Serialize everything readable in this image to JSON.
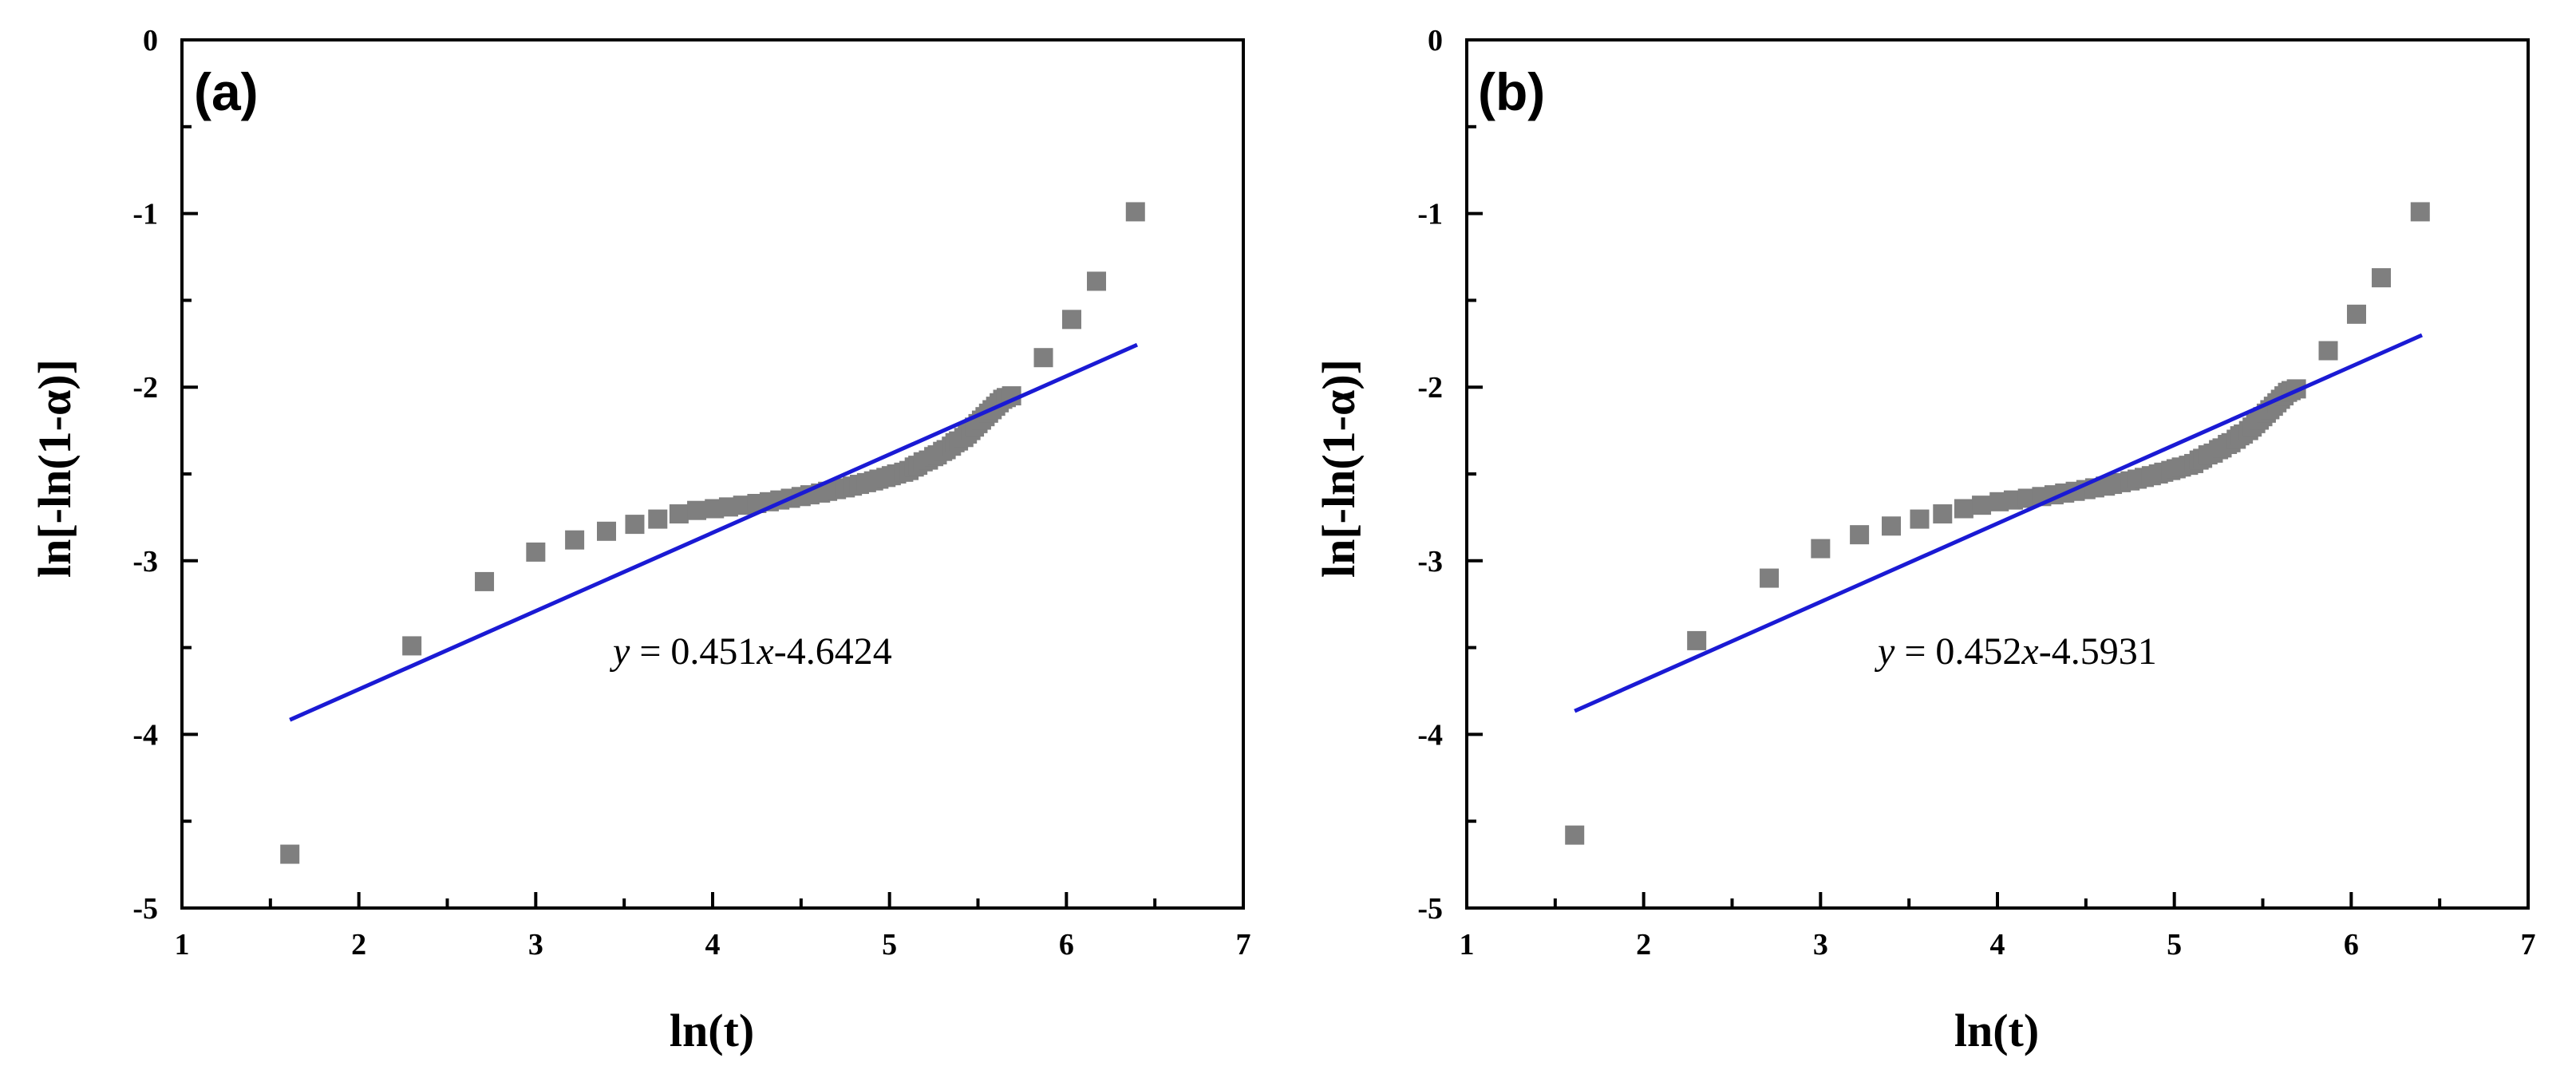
{
  "chart_data": [
    {
      "type": "scatter",
      "panel_label": "(a)",
      "xlabel": "ln(t)",
      "ylabel": "ln[-ln(1-α)]",
      "xlim": [
        1,
        7
      ],
      "ylim": [
        -5,
        0
      ],
      "xticks": [
        "1",
        "2",
        "3",
        "4",
        "5",
        "6",
        "7"
      ],
      "yticks": [
        "0",
        "-1",
        "-2",
        "-3",
        "-4",
        "-5"
      ],
      "equation": {
        "y_part": "y",
        "eq_part": " = 0.451",
        "x_part": "x",
        "tail": "-4.6424"
      },
      "fit": {
        "slope": 0.451,
        "intercept": -4.6424,
        "x_range": [
          1.61,
          6.4
        ],
        "color": "#1a1ad4"
      },
      "marker_color": "#7f7f7f",
      "series": [
        {
          "name": "data",
          "points": [
            [
              1.61,
              -4.69
            ],
            [
              2.3,
              -3.49
            ],
            [
              2.71,
              -3.12
            ],
            [
              3.0,
              -2.95
            ],
            [
              3.22,
              -2.88
            ],
            [
              3.4,
              -2.83
            ],
            [
              3.56,
              -2.79
            ],
            [
              3.69,
              -2.76
            ],
            [
              3.81,
              -2.73
            ],
            [
              3.91,
              -2.71
            ],
            [
              4.01,
              -2.7
            ],
            [
              4.09,
              -2.69
            ],
            [
              4.17,
              -2.68
            ],
            [
              4.25,
              -2.67
            ],
            [
              4.32,
              -2.66
            ],
            [
              4.38,
              -2.65
            ],
            [
              4.44,
              -2.64
            ],
            [
              4.5,
              -2.63
            ],
            [
              4.55,
              -2.62
            ],
            [
              4.61,
              -2.61
            ],
            [
              4.65,
              -2.6
            ],
            [
              4.7,
              -2.59
            ],
            [
              4.75,
              -2.58
            ],
            [
              4.79,
              -2.57
            ],
            [
              4.83,
              -2.56
            ],
            [
              4.87,
              -2.55
            ],
            [
              4.91,
              -2.54
            ],
            [
              4.94,
              -2.53
            ],
            [
              4.98,
              -2.52
            ],
            [
              5.01,
              -2.51
            ],
            [
              5.04,
              -2.5
            ],
            [
              5.08,
              -2.49
            ],
            [
              5.11,
              -2.48
            ],
            [
              5.14,
              -2.46
            ],
            [
              5.16,
              -2.45
            ],
            [
              5.19,
              -2.43
            ],
            [
              5.22,
              -2.42
            ],
            [
              5.25,
              -2.4
            ],
            [
              5.27,
              -2.39
            ],
            [
              5.3,
              -2.37
            ],
            [
              5.32,
              -2.36
            ],
            [
              5.35,
              -2.34
            ],
            [
              5.37,
              -2.32
            ],
            [
              5.39,
              -2.31
            ],
            [
              5.42,
              -2.29
            ],
            [
              5.44,
              -2.27
            ],
            [
              5.46,
              -2.25
            ],
            [
              5.48,
              -2.23
            ],
            [
              5.5,
              -2.21
            ],
            [
              5.52,
              -2.19
            ],
            [
              5.54,
              -2.17
            ],
            [
              5.56,
              -2.15
            ],
            [
              5.58,
              -2.13
            ],
            [
              5.6,
              -2.11
            ],
            [
              5.62,
              -2.09
            ],
            [
              5.64,
              -2.07
            ],
            [
              5.66,
              -2.06
            ],
            [
              5.69,
              -2.05
            ],
            [
              5.87,
              -1.83
            ],
            [
              6.03,
              -1.61
            ],
            [
              6.17,
              -1.39
            ],
            [
              6.39,
              -0.99
            ]
          ]
        }
      ]
    },
    {
      "type": "scatter",
      "panel_label": "(b)",
      "xlabel": "ln(t)",
      "ylabel": "ln[-ln(1-α)]",
      "xlim": [
        1,
        7
      ],
      "ylim": [
        -5,
        0
      ],
      "xticks": [
        "1",
        "2",
        "3",
        "4",
        "5",
        "6",
        "7"
      ],
      "yticks": [
        "0",
        "-1",
        "-2",
        "-3",
        "-4",
        "-5"
      ],
      "equation": {
        "y_part": "y",
        "eq_part": " = 0.452",
        "x_part": "x",
        "tail": "-4.5931"
      },
      "fit": {
        "slope": 0.452,
        "intercept": -4.5931,
        "x_range": [
          1.61,
          6.4
        ],
        "color": "#1a1ad4"
      },
      "marker_color": "#7f7f7f",
      "series": [
        {
          "name": "data",
          "points": [
            [
              1.61,
              -4.58
            ],
            [
              2.3,
              -3.46
            ],
            [
              2.71,
              -3.1
            ],
            [
              3.0,
              -2.93
            ],
            [
              3.22,
              -2.85
            ],
            [
              3.4,
              -2.8
            ],
            [
              3.56,
              -2.76
            ],
            [
              3.69,
              -2.73
            ],
            [
              3.81,
              -2.7
            ],
            [
              3.91,
              -2.68
            ],
            [
              4.01,
              -2.66
            ],
            [
              4.09,
              -2.65
            ],
            [
              4.17,
              -2.64
            ],
            [
              4.25,
              -2.63
            ],
            [
              4.32,
              -2.62
            ],
            [
              4.38,
              -2.61
            ],
            [
              4.44,
              -2.6
            ],
            [
              4.5,
              -2.59
            ],
            [
              4.55,
              -2.58
            ],
            [
              4.61,
              -2.57
            ],
            [
              4.65,
              -2.56
            ],
            [
              4.7,
              -2.55
            ],
            [
              4.75,
              -2.54
            ],
            [
              4.79,
              -2.53
            ],
            [
              4.83,
              -2.52
            ],
            [
              4.87,
              -2.51
            ],
            [
              4.91,
              -2.5
            ],
            [
              4.94,
              -2.49
            ],
            [
              4.98,
              -2.48
            ],
            [
              5.01,
              -2.47
            ],
            [
              5.04,
              -2.46
            ],
            [
              5.08,
              -2.45
            ],
            [
              5.11,
              -2.44
            ],
            [
              5.14,
              -2.42
            ],
            [
              5.16,
              -2.41
            ],
            [
              5.19,
              -2.39
            ],
            [
              5.22,
              -2.38
            ],
            [
              5.25,
              -2.36
            ],
            [
              5.27,
              -2.35
            ],
            [
              5.3,
              -2.33
            ],
            [
              5.32,
              -2.32
            ],
            [
              5.35,
              -2.3
            ],
            [
              5.37,
              -2.28
            ],
            [
              5.39,
              -2.27
            ],
            [
              5.42,
              -2.25
            ],
            [
              5.44,
              -2.23
            ],
            [
              5.46,
              -2.21
            ],
            [
              5.48,
              -2.19
            ],
            [
              5.5,
              -2.17
            ],
            [
              5.52,
              -2.15
            ],
            [
              5.54,
              -2.13
            ],
            [
              5.56,
              -2.11
            ],
            [
              5.58,
              -2.09
            ],
            [
              5.6,
              -2.07
            ],
            [
              5.62,
              -2.05
            ],
            [
              5.64,
              -2.03
            ],
            [
              5.66,
              -2.02
            ],
            [
              5.69,
              -2.01
            ],
            [
              5.87,
              -1.79
            ],
            [
              6.03,
              -1.58
            ],
            [
              6.17,
              -1.37
            ],
            [
              6.39,
              -0.99
            ]
          ]
        }
      ]
    }
  ]
}
